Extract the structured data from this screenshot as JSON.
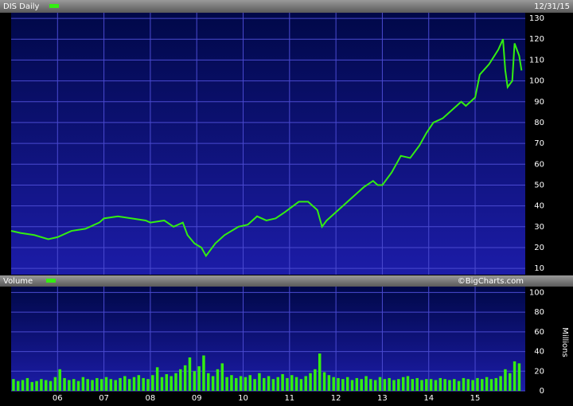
{
  "chart_data": [
    {
      "type": "line",
      "subtitle": "12/31/15",
      "xlim": [
        2005.0,
        2016.08
      ],
      "ylim": [
        7,
        132.7
      ],
      "yticks": [
        10,
        20,
        30,
        40,
        50,
        60,
        70,
        80,
        90,
        100,
        110,
        120,
        130
      ],
      "grid": true,
      "series": [
        {
          "name": "DIS Daily",
          "color": "#33ee11",
          "x": [
            2005.0,
            2005.2,
            2005.5,
            2005.8,
            2006.0,
            2006.3,
            2006.6,
            2006.9,
            2007.0,
            2007.3,
            2007.6,
            2007.9,
            2008.0,
            2008.3,
            2008.5,
            2008.7,
            2008.8,
            2008.95,
            2009.1,
            2009.2,
            2009.4,
            2009.6,
            2009.9,
            2010.1,
            2010.3,
            2010.5,
            2010.7,
            2010.9,
            2011.2,
            2011.4,
            2011.6,
            2011.7,
            2011.8,
            2012.0,
            2012.3,
            2012.6,
            2012.8,
            2012.9,
            2013.0,
            2013.2,
            2013.4,
            2013.6,
            2013.8,
            2013.95,
            2014.1,
            2014.3,
            2014.5,
            2014.7,
            2014.8,
            2015.0,
            2015.1,
            2015.3,
            2015.5,
            2015.6,
            2015.65,
            2015.7,
            2015.8,
            2015.85,
            2015.95,
            2016.0
          ],
          "values": [
            28,
            27,
            26,
            24,
            25,
            28,
            29,
            32,
            34,
            35,
            34,
            33,
            32,
            33,
            30,
            32,
            26,
            22,
            20,
            16,
            22,
            26,
            30,
            31,
            35,
            33,
            34,
            37,
            42,
            42,
            38,
            30,
            33,
            37,
            43,
            49,
            52,
            50,
            50,
            56,
            64,
            63,
            69,
            75,
            80,
            82,
            86,
            90,
            88,
            92,
            103,
            108,
            115,
            120,
            105,
            97,
            100,
            118,
            112,
            105
          ]
        }
      ]
    },
    {
      "type": "bar",
      "annotation": "©BigCharts.com",
      "y_label": "Millions",
      "xlim": [
        2005.0,
        2016.08
      ],
      "ylim": [
        0,
        106
      ],
      "yticks": [
        0,
        20,
        40,
        60,
        80,
        100
      ],
      "xticks": [
        {
          "value": 2006,
          "label": "06"
        },
        {
          "value": 2007,
          "label": "07"
        },
        {
          "value": 2008,
          "label": "08"
        },
        {
          "value": 2009,
          "label": "09"
        },
        {
          "value": 2010,
          "label": "10"
        },
        {
          "value": 2011,
          "label": "11"
        },
        {
          "value": 2012,
          "label": "12"
        },
        {
          "value": 2013,
          "label": "13"
        },
        {
          "value": 2014,
          "label": "14"
        },
        {
          "value": 2015,
          "label": "15"
        }
      ],
      "grid": true,
      "series": [
        {
          "name": "Volume",
          "color": "#33ee11",
          "x": [
            2005.05,
            2005.15,
            2005.25,
            2005.35,
            2005.45,
            2005.55,
            2005.65,
            2005.75,
            2005.85,
            2005.95,
            2006.05,
            2006.15,
            2006.25,
            2006.35,
            2006.45,
            2006.55,
            2006.65,
            2006.75,
            2006.85,
            2006.95,
            2007.05,
            2007.15,
            2007.25,
            2007.35,
            2007.45,
            2007.55,
            2007.65,
            2007.75,
            2007.85,
            2007.95,
            2008.05,
            2008.15,
            2008.25,
            2008.35,
            2008.45,
            2008.55,
            2008.65,
            2008.75,
            2008.85,
            2008.95,
            2009.05,
            2009.15,
            2009.25,
            2009.35,
            2009.45,
            2009.55,
            2009.65,
            2009.75,
            2009.85,
            2009.95,
            2010.05,
            2010.15,
            2010.25,
            2010.35,
            2010.45,
            2010.55,
            2010.65,
            2010.75,
            2010.85,
            2010.95,
            2011.05,
            2011.15,
            2011.25,
            2011.35,
            2011.45,
            2011.55,
            2011.65,
            2011.75,
            2011.85,
            2011.95,
            2012.05,
            2012.15,
            2012.25,
            2012.35,
            2012.45,
            2012.55,
            2012.65,
            2012.75,
            2012.85,
            2012.95,
            2013.05,
            2013.15,
            2013.25,
            2013.35,
            2013.45,
            2013.55,
            2013.65,
            2013.75,
            2013.85,
            2013.95,
            2014.05,
            2014.15,
            2014.25,
            2014.35,
            2014.45,
            2014.55,
            2014.65,
            2014.75,
            2014.85,
            2014.95,
            2015.05,
            2015.15,
            2015.25,
            2015.35,
            2015.45,
            2015.55,
            2015.65,
            2015.75,
            2015.85,
            2015.95
          ],
          "values": [
            12,
            10,
            11,
            13,
            9,
            10,
            12,
            11,
            10,
            14,
            22,
            13,
            11,
            12,
            10,
            14,
            12,
            11,
            13,
            12,
            14,
            12,
            11,
            13,
            15,
            12,
            14,
            16,
            13,
            12,
            16,
            24,
            14,
            17,
            15,
            18,
            22,
            26,
            34,
            20,
            25,
            36,
            18,
            15,
            22,
            28,
            14,
            16,
            13,
            15,
            14,
            16,
            12,
            18,
            13,
            15,
            12,
            14,
            17,
            13,
            16,
            14,
            12,
            15,
            18,
            22,
            38,
            19,
            16,
            14,
            13,
            12,
            14,
            11,
            13,
            12,
            15,
            12,
            11,
            14,
            12,
            13,
            11,
            12,
            14,
            15,
            12,
            13,
            11,
            12,
            12,
            11,
            13,
            12,
            11,
            12,
            10,
            13,
            12,
            11,
            13,
            12,
            14,
            12,
            13,
            15,
            22,
            18,
            30,
            28
          ]
        }
      ]
    }
  ]
}
